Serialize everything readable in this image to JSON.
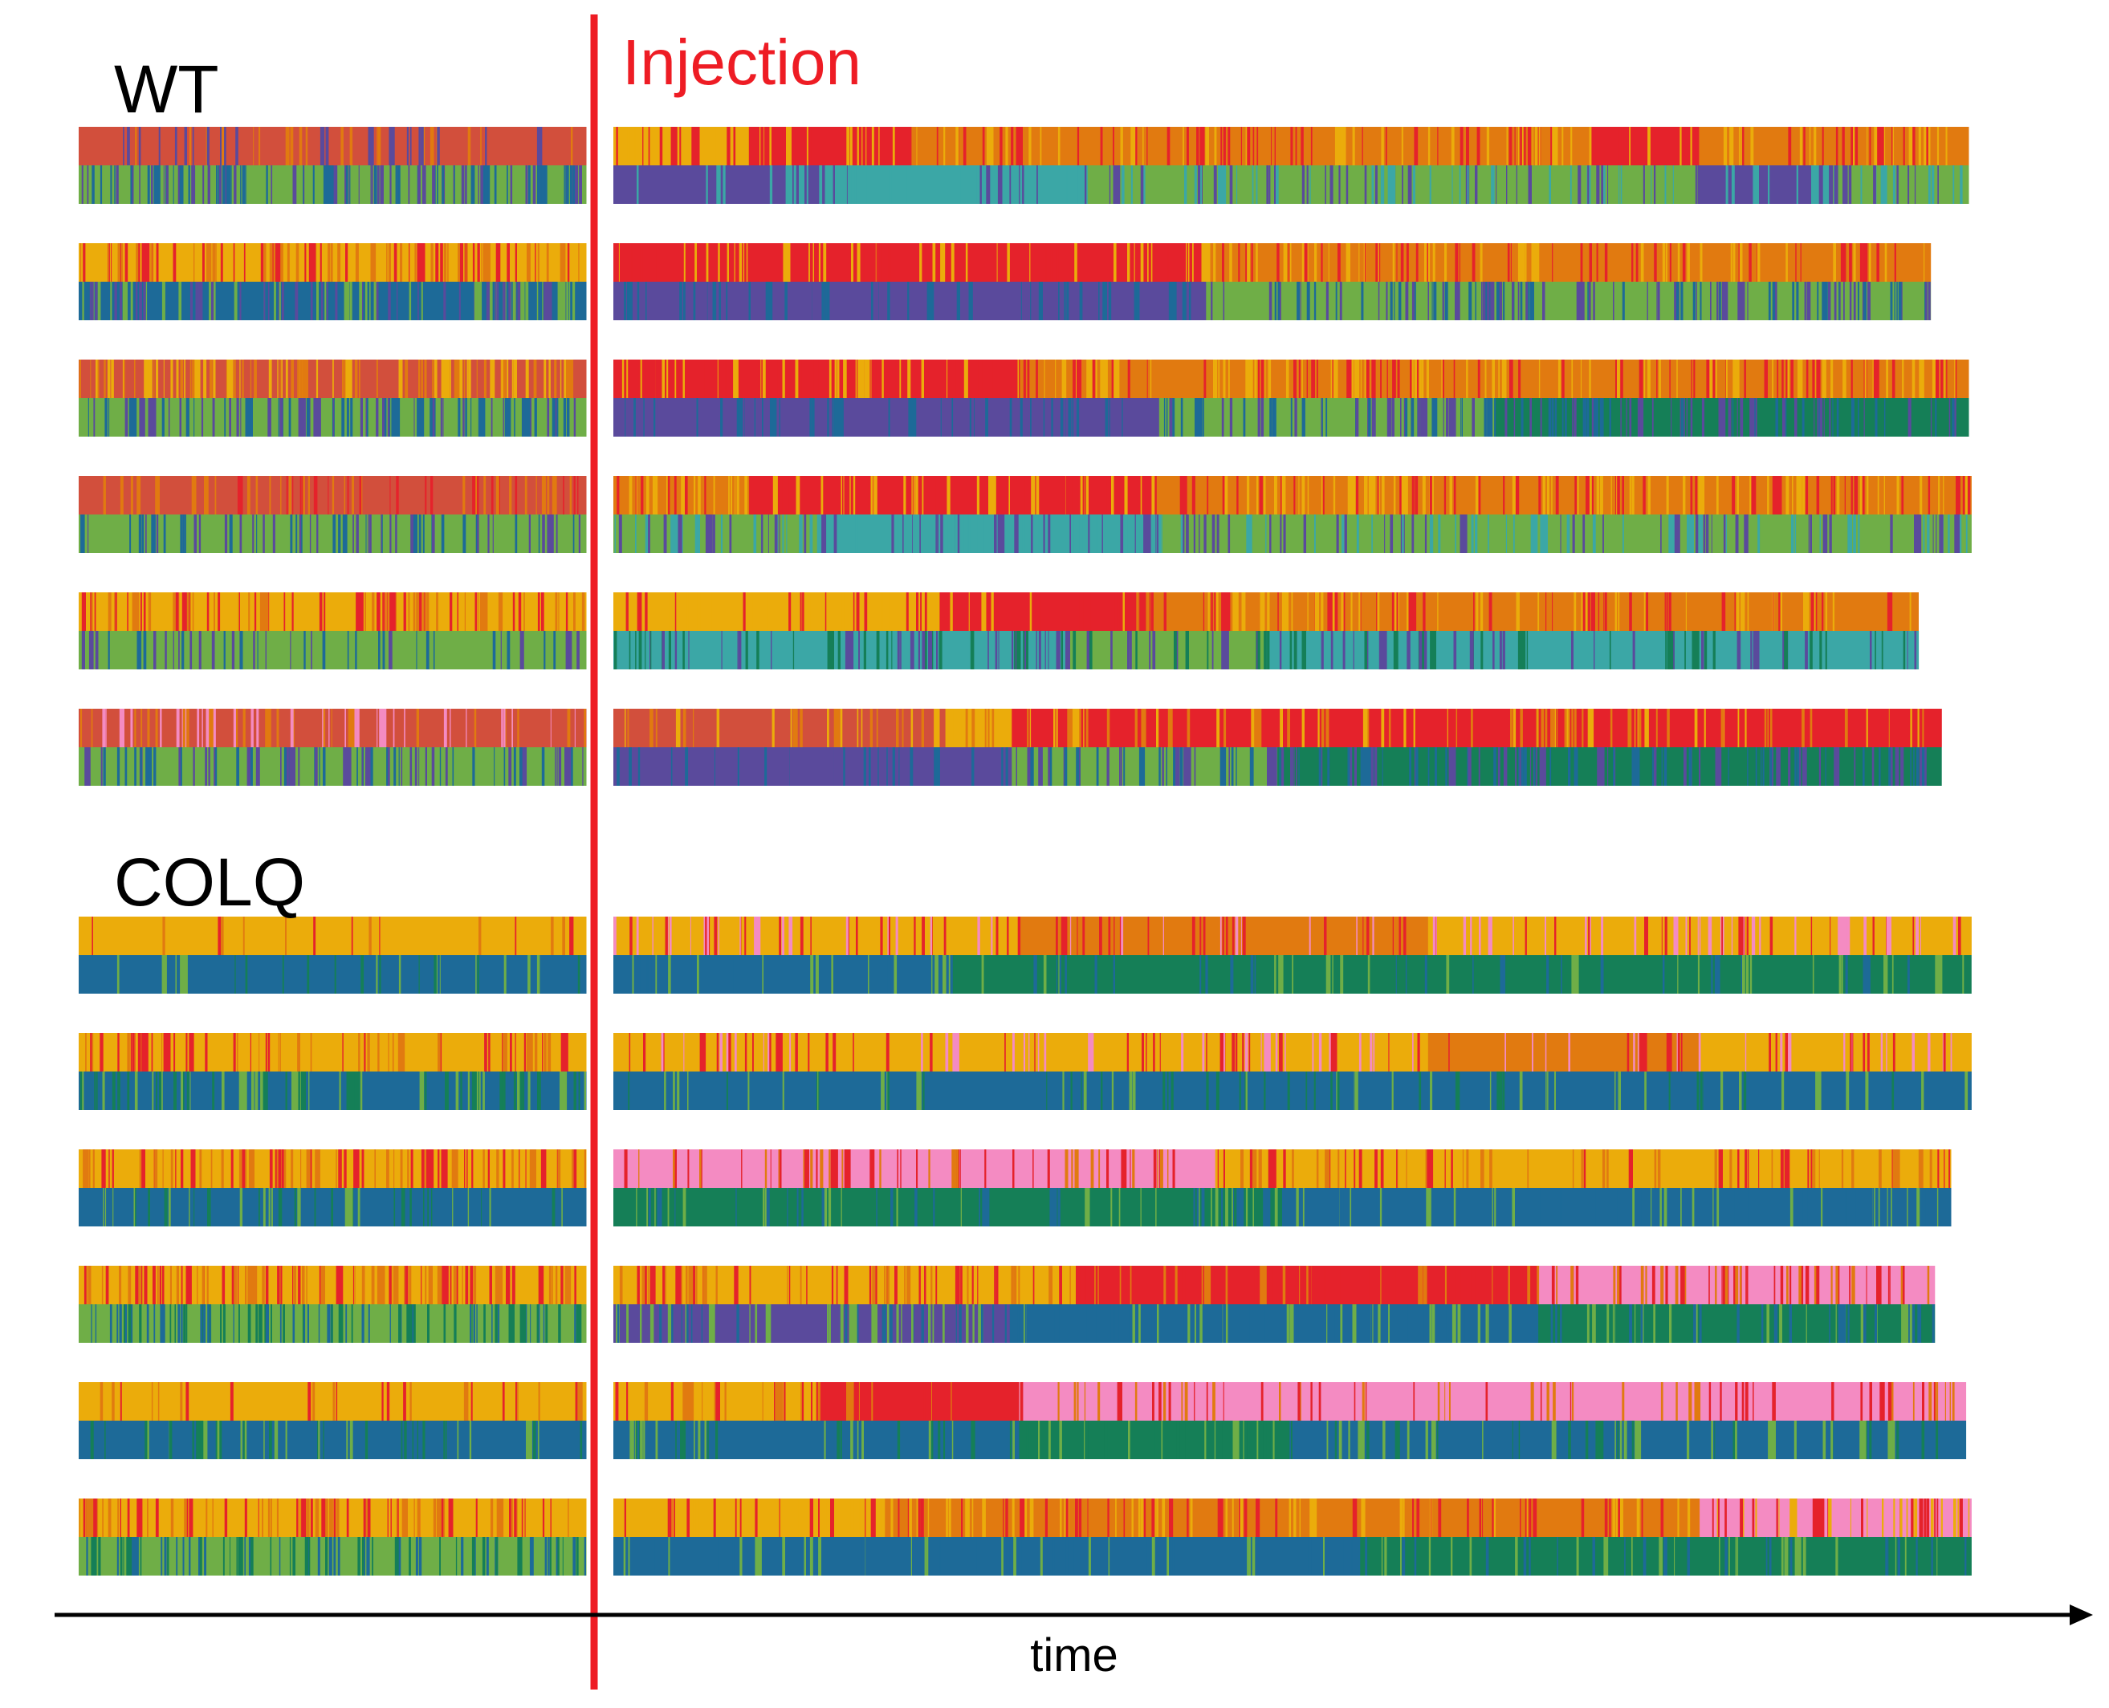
{
  "chart_data": {
    "type": "heatmap",
    "description_note": "",
    "xlabel": "time",
    "event_label": "Injection",
    "colors": {
      "event_line": "#ee1c24",
      "event_text": "#ee1c24",
      "axis": "#000000"
    },
    "palette": {
      "red_coral": "#d24f3c",
      "red": "#e5222b",
      "orange": "#e17a10",
      "yellow_orange": "#ebac0b",
      "pink": "#f48bc2",
      "purple": "#5a4a9c",
      "green": "#6fae47",
      "teal": "#3ba7a6",
      "dark_green": "#157f57",
      "blue": "#1d6a98"
    },
    "groups": [
      {
        "name": "WT",
        "tracks": [
          {
            "top_pre": {
              "base": "red_coral",
              "accents": [
                "orange",
                "purple"
              ],
              "density": 0.25
            },
            "bottom_pre": {
              "base": "green",
              "accents": [
                "purple",
                "blue"
              ],
              "density": 0.55
            },
            "top_post": [
              [
                "yellow_orange",
                0.1
              ],
              [
                "red",
                0.12
              ],
              [
                "orange",
                0.5
              ],
              [
                "red",
                0.08
              ],
              [
                "orange",
                0.2
              ]
            ],
            "top_post_accents": [
              "red",
              "yellow_orange"
            ],
            "top_post_density": 0.35,
            "bottom_post": [
              [
                "purple",
                0.15
              ],
              [
                "teal",
                0.2
              ],
              [
                "green",
                0.45
              ],
              [
                "purple",
                0.1
              ],
              [
                "green",
                0.1
              ]
            ],
            "bottom_post_accents": [
              "purple",
              "teal"
            ],
            "bottom_post_density": 0.3,
            "post_len": 1.0
          },
          {
            "top_pre": {
              "base": "yellow_orange",
              "accents": [
                "red",
                "orange"
              ],
              "density": 0.45
            },
            "bottom_pre": {
              "base": "blue",
              "accents": [
                "green",
                "purple"
              ],
              "density": 0.5
            },
            "top_post": [
              [
                "red",
                0.35
              ],
              [
                "red",
                0.1
              ],
              [
                "orange",
                0.55
              ]
            ],
            "top_post_accents": [
              "red",
              "yellow_orange"
            ],
            "top_post_density": 0.35,
            "bottom_post": [
              [
                "purple",
                0.35
              ],
              [
                "purple",
                0.1
              ],
              [
                "green",
                0.55
              ]
            ],
            "bottom_post_accents": [
              "purple",
              "blue"
            ],
            "bottom_post_density": 0.4,
            "post_len": 0.972
          },
          {
            "top_pre": {
              "base": "red_coral",
              "accents": [
                "yellow_orange",
                "orange"
              ],
              "density": 0.5
            },
            "bottom_pre": {
              "base": "green",
              "accents": [
                "purple",
                "blue"
              ],
              "density": 0.4
            },
            "top_post": [
              [
                "red",
                0.3
              ],
              [
                "orange",
                0.7
              ]
            ],
            "top_post_accents": [
              "red",
              "yellow_orange"
            ],
            "top_post_density": 0.45,
            "bottom_post": [
              [
                "purple",
                0.4
              ],
              [
                "green",
                0.25
              ],
              [
                "dark_green",
                0.35
              ]
            ],
            "bottom_post_accents": [
              "purple",
              "blue"
            ],
            "bottom_post_density": 0.45,
            "post_len": 1.0
          },
          {
            "top_pre": {
              "base": "red_coral",
              "accents": [
                "orange",
                "red"
              ],
              "density": 0.3
            },
            "bottom_pre": {
              "base": "green",
              "accents": [
                "purple",
                "blue"
              ],
              "density": 0.35
            },
            "top_post": [
              [
                "orange",
                0.1
              ],
              [
                "red",
                0.3
              ],
              [
                "orange",
                0.6
              ]
            ],
            "top_post_accents": [
              "red",
              "yellow_orange"
            ],
            "top_post_density": 0.4,
            "bottom_post": [
              [
                "green",
                0.15
              ],
              [
                "teal",
                0.25
              ],
              [
                "green",
                0.6
              ]
            ],
            "bottom_post_accents": [
              "purple",
              "teal"
            ],
            "bottom_post_density": 0.35,
            "post_len": 1.002
          },
          {
            "top_pre": {
              "base": "yellow_orange",
              "accents": [
                "orange",
                "red"
              ],
              "density": 0.4
            },
            "bottom_pre": {
              "base": "green",
              "accents": [
                "purple",
                "blue"
              ],
              "density": 0.25
            },
            "top_post": [
              [
                "yellow_orange",
                0.25
              ],
              [
                "red",
                0.15
              ],
              [
                "orange",
                0.6
              ]
            ],
            "top_post_accents": [
              "red",
              "yellow_orange"
            ],
            "top_post_density": 0.3,
            "bottom_post": [
              [
                "teal",
                0.35
              ],
              [
                "green",
                0.15
              ],
              [
                "teal",
                0.5
              ]
            ],
            "bottom_post_accents": [
              "purple",
              "dark_green"
            ],
            "bottom_post_density": 0.3,
            "post_len": 0.963
          },
          {
            "top_pre": {
              "base": "red_coral",
              "accents": [
                "orange",
                "pink"
              ],
              "density": 0.35
            },
            "bottom_pre": {
              "base": "green",
              "accents": [
                "purple",
                "blue"
              ],
              "density": 0.4
            },
            "top_post": [
              [
                "red_coral",
                0.25
              ],
              [
                "yellow_orange",
                0.05
              ],
              [
                "red",
                0.7
              ]
            ],
            "top_post_accents": [
              "orange",
              "yellow_orange"
            ],
            "top_post_density": 0.25,
            "bottom_post": [
              [
                "purple",
                0.3
              ],
              [
                "green",
                0.2
              ],
              [
                "dark_green",
                0.5
              ]
            ],
            "bottom_post_accents": [
              "purple",
              "blue"
            ],
            "bottom_post_density": 0.4,
            "post_len": 0.98
          }
        ]
      },
      {
        "name": "COLQ",
        "tracks": [
          {
            "top_pre": {
              "base": "yellow_orange",
              "accents": [
                "red",
                "orange"
              ],
              "density": 0.08
            },
            "bottom_pre": {
              "base": "blue",
              "accents": [
                "green",
                "dark_green"
              ],
              "density": 0.12
            },
            "top_post": [
              [
                "yellow_orange",
                0.3
              ],
              [
                "orange",
                0.3
              ],
              [
                "yellow_orange",
                0.4
              ]
            ],
            "top_post_accents": [
              "red",
              "pink"
            ],
            "top_post_density": 0.25,
            "bottom_post": [
              [
                "blue",
                0.25
              ],
              [
                "dark_green",
                0.75
              ]
            ],
            "bottom_post_accents": [
              "blue",
              "green"
            ],
            "bottom_post_density": 0.15,
            "post_len": 1.002
          },
          {
            "top_pre": {
              "base": "yellow_orange",
              "accents": [
                "red",
                "orange"
              ],
              "density": 0.3
            },
            "bottom_pre": {
              "base": "blue",
              "accents": [
                "green",
                "dark_green"
              ],
              "density": 0.3
            },
            "top_post": [
              [
                "yellow_orange",
                0.6
              ],
              [
                "orange",
                0.2
              ],
              [
                "yellow_orange",
                0.2
              ]
            ],
            "top_post_accents": [
              "red",
              "pink"
            ],
            "top_post_density": 0.2,
            "bottom_post": [
              [
                "blue",
                1.0
              ]
            ],
            "bottom_post_accents": [
              "dark_green",
              "green"
            ],
            "bottom_post_density": 0.15,
            "post_len": 1.002
          },
          {
            "top_pre": {
              "base": "yellow_orange",
              "accents": [
                "red",
                "orange"
              ],
              "density": 0.45
            },
            "bottom_pre": {
              "base": "blue",
              "accents": [
                "green",
                "dark_green"
              ],
              "density": 0.2
            },
            "top_post": [
              [
                "pink",
                0.45
              ],
              [
                "yellow_orange",
                0.55
              ]
            ],
            "top_post_accents": [
              "red",
              "orange"
            ],
            "top_post_density": 0.25,
            "bottom_post": [
              [
                "dark_green",
                0.5
              ],
              [
                "blue",
                0.5
              ]
            ],
            "bottom_post_accents": [
              "green",
              "blue"
            ],
            "bottom_post_density": 0.2,
            "post_len": 0.987
          },
          {
            "top_pre": {
              "base": "yellow_orange",
              "accents": [
                "red",
                "orange"
              ],
              "density": 0.5
            },
            "bottom_pre": {
              "base": "green",
              "accents": [
                "blue",
                "dark_green"
              ],
              "density": 0.45
            },
            "top_post": [
              [
                "yellow_orange",
                0.35
              ],
              [
                "red",
                0.35
              ],
              [
                "pink",
                0.3
              ]
            ],
            "top_post_accents": [
              "red",
              "orange"
            ],
            "top_post_density": 0.35,
            "bottom_post": [
              [
                "purple",
                0.3
              ],
              [
                "blue",
                0.4
              ],
              [
                "dark_green",
                0.3
              ]
            ],
            "bottom_post_accents": [
              "blue",
              "green"
            ],
            "bottom_post_density": 0.3,
            "post_len": 0.975
          },
          {
            "top_pre": {
              "base": "yellow_orange",
              "accents": [
                "orange",
                "red"
              ],
              "density": 0.12
            },
            "bottom_pre": {
              "base": "blue",
              "accents": [
                "green",
                "dark_green"
              ],
              "density": 0.2
            },
            "top_post": [
              [
                "yellow_orange",
                0.15
              ],
              [
                "red",
                0.15
              ],
              [
                "pink",
                0.7
              ]
            ],
            "top_post_accents": [
              "red",
              "orange"
            ],
            "top_post_density": 0.2,
            "bottom_post": [
              [
                "blue",
                0.3
              ],
              [
                "dark_green",
                0.2
              ],
              [
                "blue",
                0.5
              ]
            ],
            "bottom_post_accents": [
              "green",
              "dark_green"
            ],
            "bottom_post_density": 0.2,
            "post_len": 0.998
          },
          {
            "top_pre": {
              "base": "yellow_orange",
              "accents": [
                "red",
                "orange"
              ],
              "density": 0.4
            },
            "bottom_pre": {
              "base": "green",
              "accents": [
                "blue",
                "dark_green"
              ],
              "density": 0.4
            },
            "top_post": [
              [
                "yellow_orange",
                0.2
              ],
              [
                "orange",
                0.6
              ],
              [
                "pink",
                0.2
              ]
            ],
            "top_post_accents": [
              "red",
              "yellow_orange"
            ],
            "top_post_density": 0.35,
            "bottom_post": [
              [
                "blue",
                0.55
              ],
              [
                "dark_green",
                0.45
              ]
            ],
            "bottom_post_accents": [
              "green",
              "blue"
            ],
            "bottom_post_density": 0.2,
            "post_len": 1.002
          }
        ]
      }
    ]
  }
}
